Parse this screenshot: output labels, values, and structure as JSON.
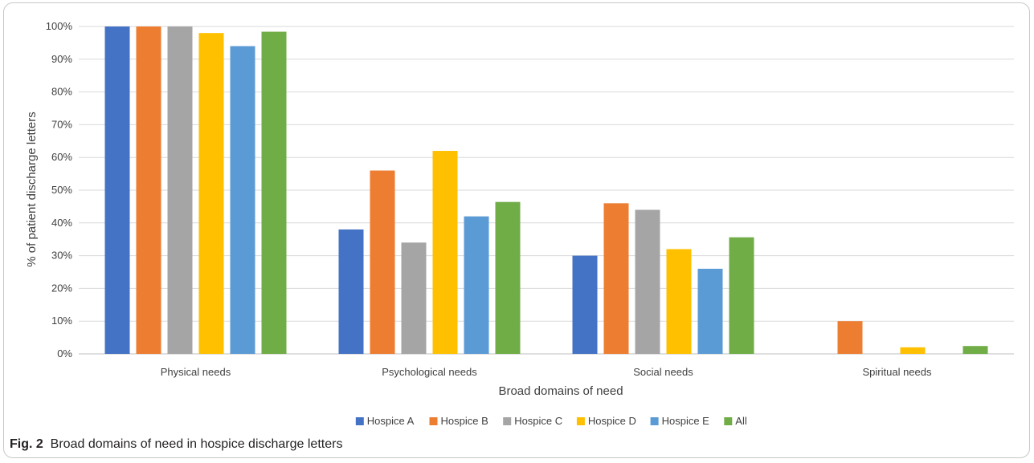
{
  "figure": {
    "label": "Fig. 2",
    "caption": "Broad domains of need in hospice discharge letters"
  },
  "chart_data": {
    "type": "bar",
    "xlabel": "Broad domains of need",
    "ylabel": "% of patient discharge letters",
    "ylim": [
      0,
      100
    ],
    "y_ticks": [
      "0%",
      "10%",
      "20%",
      "30%",
      "40%",
      "50%",
      "60%",
      "70%",
      "80%",
      "90%",
      "100%"
    ],
    "grid": true,
    "legend_position": "bottom",
    "categories": [
      "Physical needs",
      "Psychological needs",
      "Social needs",
      "Spiritual needs"
    ],
    "series": [
      {
        "name": "Hospice A",
        "color": "#4472c4",
        "values": [
          100,
          38,
          30,
          0
        ]
      },
      {
        "name": "Hospice B",
        "color": "#ed7d31",
        "values": [
          100,
          56,
          46,
          10
        ]
      },
      {
        "name": "Hospice C",
        "color": "#a5a5a5",
        "values": [
          100,
          34,
          44,
          0
        ]
      },
      {
        "name": "Hospice D",
        "color": "#ffc000",
        "values": [
          98,
          62,
          32,
          2
        ]
      },
      {
        "name": "Hospice E",
        "color": "#5b9bd5",
        "values": [
          94,
          42,
          26,
          0
        ]
      },
      {
        "name": "All",
        "color": "#70ad47",
        "values": [
          98.4,
          46.4,
          35.6,
          2.4
        ]
      }
    ]
  }
}
